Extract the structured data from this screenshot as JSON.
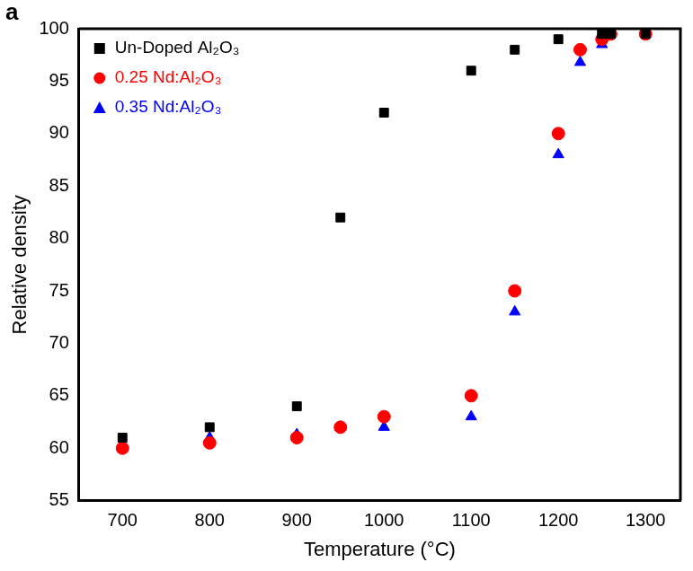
{
  "chart_data": {
    "type": "scatter",
    "title": "a",
    "x_label": "Temperature (°C)",
    "y_label": "Relative density",
    "xlim": [
      650,
      1340
    ],
    "xticks": [
      700,
      800,
      900,
      1000,
      1100,
      1200,
      1300
    ],
    "ylim": [
      55,
      100
    ],
    "yticks": [
      55,
      60,
      65,
      70,
      75,
      80,
      85,
      90,
      95,
      100
    ],
    "grid": false,
    "legend": "upper left",
    "series": [
      {
        "name": "Un-Doped Al₂O₃",
        "color": "#000000",
        "marker": "square",
        "x": [
          700,
          800,
          900,
          950,
          1000,
          1100,
          1150,
          1200,
          1250,
          1260,
          1300
        ],
        "values": [
          61,
          62,
          64,
          82,
          92,
          96,
          98,
          99,
          99.5,
          99.5,
          99.5
        ]
      },
      {
        "name": "0.25 Nd:Al₂O₃",
        "color": "#ff0000",
        "marker": "circle",
        "x": [
          700,
          800,
          900,
          950,
          1000,
          1100,
          1150,
          1200,
          1225,
          1250,
          1260,
          1300
        ],
        "values": [
          60,
          60.5,
          61,
          62,
          63,
          65,
          75,
          90,
          98,
          99,
          99.5,
          99.5
        ]
      },
      {
        "name": "0.35 Nd:Al₂O₃",
        "color": "#0000ff",
        "marker": "triangle",
        "x": [
          700,
          800,
          900,
          950,
          1000,
          1100,
          1150,
          1200,
          1225,
          1250,
          1260,
          1300
        ],
        "values": [
          60,
          61,
          61.3,
          62,
          62,
          63,
          73,
          88,
          96.8,
          98.5,
          99.5,
          99.5
        ]
      }
    ]
  }
}
